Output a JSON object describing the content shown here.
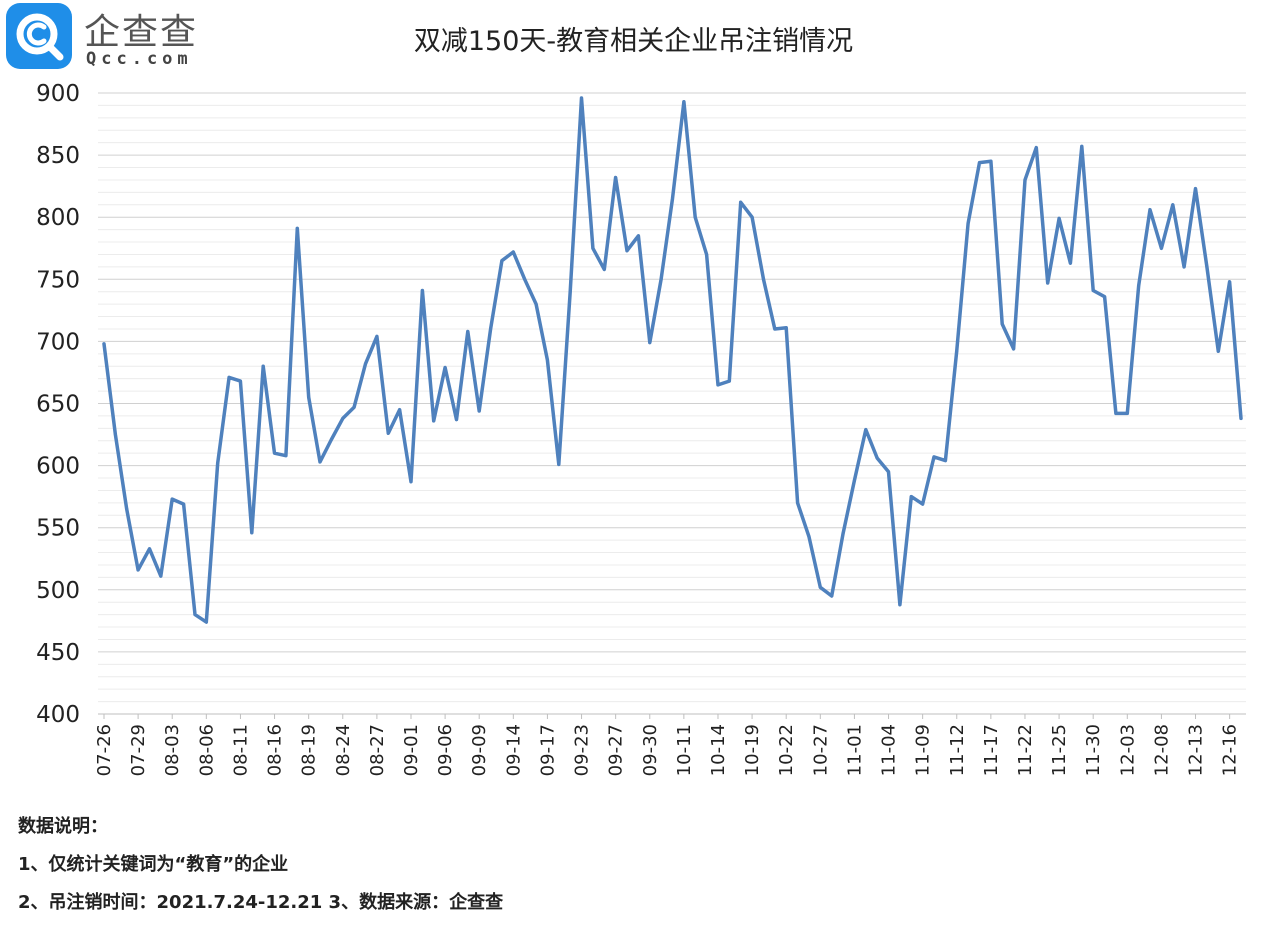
{
  "logo": {
    "cn_text": "企查查",
    "en_text": "Qcc.com",
    "badge_color": "#1f8ee8"
  },
  "chart_data": {
    "type": "line",
    "title": "双减150天-教育相关企业吊注销情况",
    "xlabel": "",
    "ylabel": "",
    "ylim": [
      400,
      900
    ],
    "yticks": [
      400,
      450,
      500,
      550,
      600,
      650,
      700,
      750,
      800,
      850,
      900
    ],
    "grid": true,
    "line_color": "#4f81bd",
    "x_tick_labels": [
      "07-26",
      "07-29",
      "08-03",
      "08-06",
      "08-11",
      "08-16",
      "08-19",
      "08-24",
      "08-27",
      "09-01",
      "09-06",
      "09-09",
      "09-14",
      "09-17",
      "09-23",
      "09-27",
      "09-30",
      "10-11",
      "10-14",
      "10-19",
      "10-22",
      "10-27",
      "11-01",
      "11-04",
      "11-09",
      "11-12",
      "11-17",
      "11-22",
      "11-25",
      "11-30",
      "12-03",
      "12-08",
      "12-13",
      "12-16"
    ],
    "series": [
      {
        "values": [
          698,
          625,
          565,
          516,
          533,
          511,
          573,
          569,
          480,
          474,
          602,
          671,
          668,
          546,
          680,
          610,
          608,
          791,
          655,
          603,
          621,
          638,
          647,
          682,
          704,
          626,
          645,
          587,
          741,
          636,
          679,
          637,
          708,
          644,
          710,
          765,
          772,
          750,
          730,
          685,
          601,
          740,
          896,
          775,
          758,
          832,
          773,
          785,
          699,
          750,
          815,
          893,
          800,
          770,
          665,
          668,
          812,
          800,
          750,
          710,
          711,
          570,
          543,
          502,
          495,
          545,
          588,
          629,
          606,
          595,
          488,
          575,
          569,
          607,
          604,
          692,
          795,
          844,
          845,
          714,
          694,
          830,
          856,
          747,
          799,
          763,
          857,
          741,
          736,
          642,
          642,
          745,
          806,
          775,
          810,
          760,
          823,
          760,
          692,
          748,
          638
        ]
      }
    ]
  },
  "notes": {
    "line1": "数据说明：",
    "line2": "1、仅统计关键词为“教育”的企业",
    "line3": "2、吊注销时间：2021.7.24-12.21   3、数据来源：企查查"
  }
}
